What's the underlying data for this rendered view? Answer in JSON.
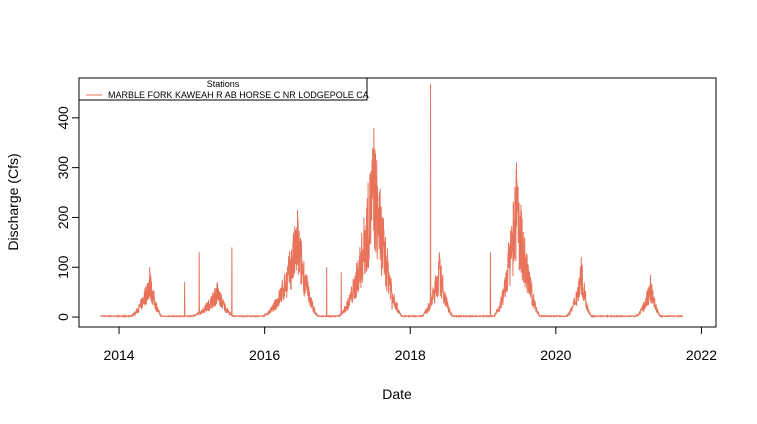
{
  "chart_data": {
    "type": "line",
    "xlabel": "Date",
    "ylabel": "Discharge (Cfs)",
    "xlim": [
      2013.45,
      2022.2
    ],
    "ylim": [
      -20,
      480
    ],
    "x_ticks": [
      2014,
      2016,
      2018,
      2020,
      2022
    ],
    "x_tick_labels": [
      "2014",
      "2016",
      "2018",
      "2020",
      "2022"
    ],
    "y_ticks": [
      0,
      100,
      200,
      300,
      400
    ],
    "y_tick_labels": [
      "0",
      "100",
      "200",
      "300",
      "400"
    ],
    "grid": false,
    "legend": {
      "title": "Stations",
      "position": "top-left"
    },
    "series": [
      {
        "name": "MARBLE FORK KAWEAH R AB HORSE C NR LODGEPOLE CA",
        "color": "#E8735A",
        "x_start": 2013.75,
        "x_end": 2021.75,
        "baseline": 1,
        "seasons": [
          {
            "start": 2014.1,
            "peak": 2014.42,
            "end": 2014.6,
            "max": 100
          },
          {
            "start": 2014.9,
            "peak": 2015.35,
            "end": 2015.6,
            "max": 70
          },
          {
            "start": 2015.9,
            "peak": 2016.45,
            "end": 2016.75,
            "max": 215
          },
          {
            "start": 2016.95,
            "peak": 2017.5,
            "end": 2017.9,
            "max": 380
          },
          {
            "start": 2018.1,
            "peak": 2018.4,
            "end": 2018.6,
            "max": 130
          },
          {
            "start": 2019.1,
            "peak": 2019.46,
            "end": 2019.8,
            "max": 310
          },
          {
            "start": 2020.1,
            "peak": 2020.35,
            "end": 2020.5,
            "max": 120
          },
          {
            "start": 2021.05,
            "peak": 2021.3,
            "end": 2021.45,
            "max": 85
          }
        ],
        "spikes": [
          {
            "x": 2014.9,
            "y": 70
          },
          {
            "x": 2015.1,
            "y": 130
          },
          {
            "x": 2015.55,
            "y": 140
          },
          {
            "x": 2016.85,
            "y": 100
          },
          {
            "x": 2017.05,
            "y": 90
          },
          {
            "x": 2017.75,
            "y": 15
          },
          {
            "x": 2018.28,
            "y": 468
          },
          {
            "x": 2019.1,
            "y": 130
          },
          {
            "x": 2019.35,
            "y": 150
          }
        ]
      }
    ]
  }
}
